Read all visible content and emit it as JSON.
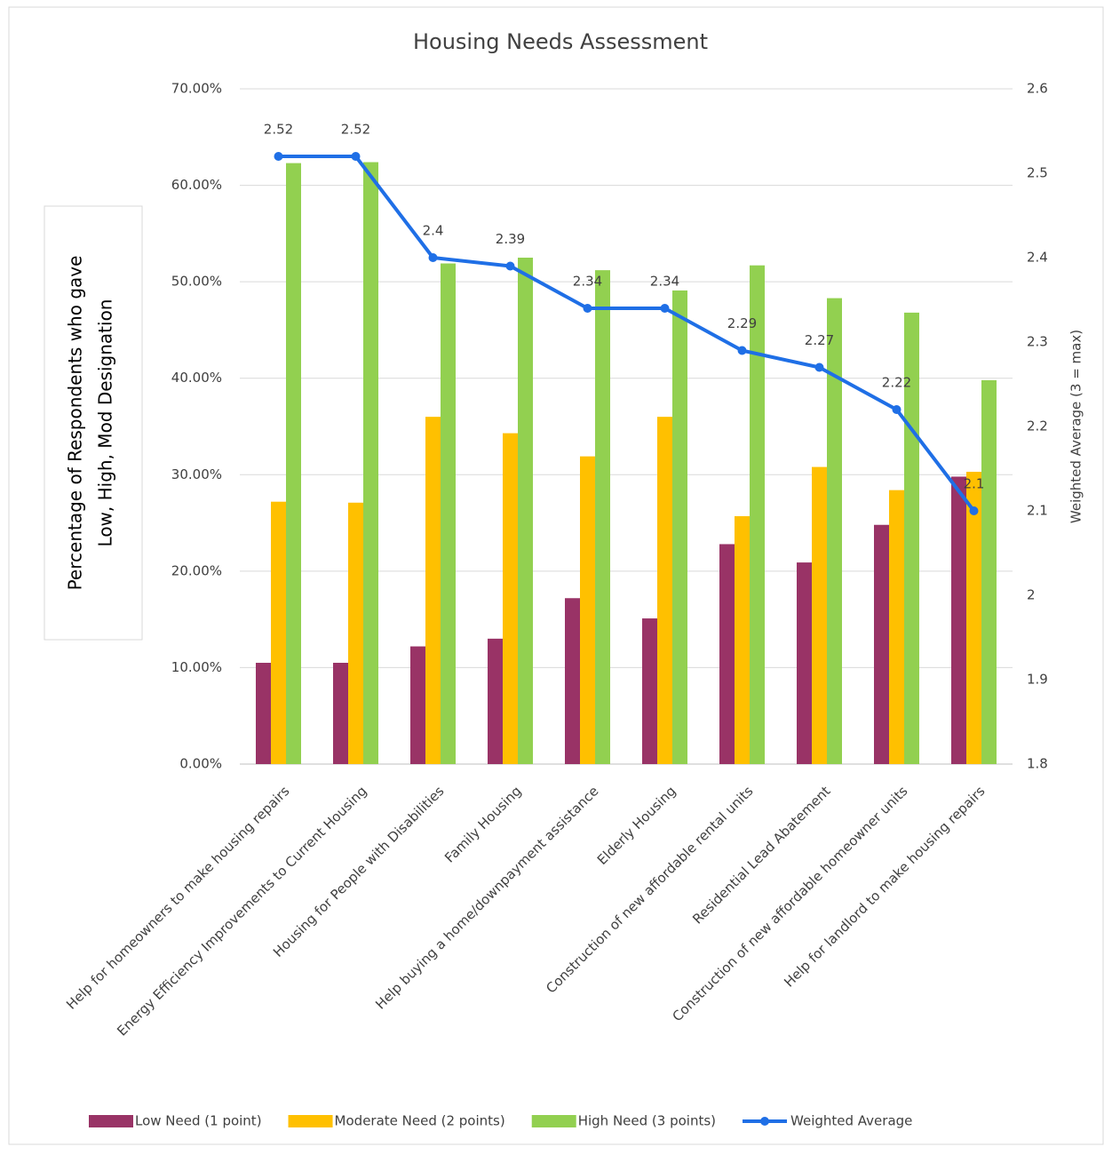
{
  "chart_data": {
    "type": "bar_line",
    "title": "Housing Needs Assessment",
    "y_label": [
      "Percentage of Respondents who gave",
      "Low, High, Mod Designation"
    ],
    "y2_label": "Weighted Average (3 = max)",
    "categories": [
      "Help for homeowners to make housing repairs",
      "Energy Efficiency Improvements to Current Housing",
      "Housing for People with Disabilities",
      "Family Housing",
      "Help buying a home/downpayment assistance",
      "Elderly Housing",
      "Construction of new affordable rental units",
      "Residential Lead Abatement",
      "Construction of new affordable homeowner units",
      "Help for landlord to make housing repairs"
    ],
    "series": [
      {
        "name": "Low Need (1 point)",
        "color": "#993366",
        "type": "bar",
        "values": [
          10.5,
          10.5,
          12.2,
          13.0,
          17.2,
          15.1,
          22.8,
          20.9,
          24.8,
          29.8
        ]
      },
      {
        "name": "Moderate Need (2 points)",
        "color": "#ffc000",
        "type": "bar",
        "values": [
          27.2,
          27.1,
          36.0,
          34.3,
          31.9,
          36.0,
          25.7,
          30.8,
          28.4,
          30.3
        ]
      },
      {
        "name": "High Need (3 points)",
        "color": "#92d050",
        "type": "bar",
        "values": [
          62.3,
          62.4,
          51.9,
          52.5,
          51.2,
          49.1,
          51.7,
          48.3,
          46.8,
          39.8
        ]
      },
      {
        "name": "Weighted Average",
        "color": "#1f6fe6",
        "type": "line",
        "axis": "y2",
        "values": [
          2.52,
          2.52,
          2.4,
          2.39,
          2.34,
          2.34,
          2.29,
          2.27,
          2.22,
          2.1
        ]
      }
    ],
    "ylim": [
      0,
      70
    ],
    "yticks": [
      {
        "value": 0,
        "label": "0.00%"
      },
      {
        "value": 10,
        "label": "10.00%"
      },
      {
        "value": 20,
        "label": "20.00%"
      },
      {
        "value": 30,
        "label": "30.00%"
      },
      {
        "value": 40,
        "label": "40.00%"
      },
      {
        "value": 50,
        "label": "50.00%"
      },
      {
        "value": 60,
        "label": "60.00%"
      },
      {
        "value": 70,
        "label": "70.00%"
      }
    ],
    "y2lim": [
      1.8,
      2.6
    ],
    "y2ticks": [
      1.8,
      1.9,
      2,
      2.1,
      2.2,
      2.3,
      2.4,
      2.5,
      2.6
    ],
    "grid": true,
    "legend": "bottom"
  }
}
